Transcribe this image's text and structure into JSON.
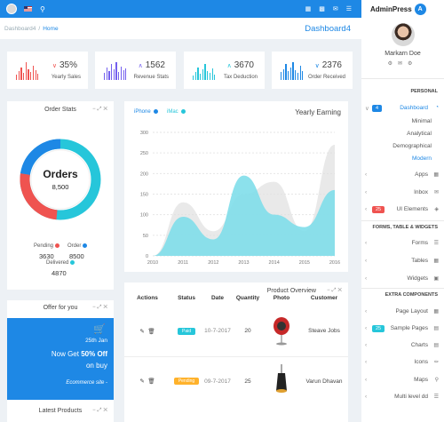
{
  "topbar": {
    "avatar": "avatar",
    "flag": "us-flag-icon",
    "icons": [
      "grid-icon",
      "bell-icon",
      "message-icon",
      "menu-icon"
    ],
    "color": "#1e88e5"
  },
  "breadcrumb": {
    "root": "Dashboard4",
    "current": "Home"
  },
  "page_title": "Dashboard4",
  "stats": [
    {
      "value": "35%",
      "label": "Yearly Sales",
      "color": "#ef5350",
      "arrow": "down"
    },
    {
      "value": "1562",
      "label": "Revenue Stats",
      "color": "#7460ee",
      "arrow": "up"
    },
    {
      "value": "3670",
      "label": "Tax Deduction",
      "color": "#26c6da",
      "arrow": "up"
    },
    {
      "value": "2376",
      "label": "Order Received",
      "color": "#1e88e5",
      "arrow": "down"
    }
  ],
  "order_stats": {
    "title": "Order Stats",
    "center_title": "Orders",
    "center_value": "8,500",
    "legend": [
      {
        "label": "Pending",
        "value": "3630",
        "color": "#ef5350"
      },
      {
        "label": "Order",
        "value": "8500",
        "color": "#1e88e5"
      },
      {
        "label": "Delivered",
        "value": "4870",
        "color": "#26c6da"
      }
    ]
  },
  "yearly_earning": {
    "title": "Yearly Earning",
    "legend": [
      {
        "label": "iPhone",
        "color": "#1e88e5"
      },
      {
        "label": "iMac",
        "color": "#26c6da"
      }
    ]
  },
  "chart_data": {
    "type": "area",
    "x": [
      "2010",
      "2011",
      "2012",
      "2013",
      "2014",
      "2015",
      "2016"
    ],
    "ylim": [
      0,
      300
    ],
    "yticks": [
      "0",
      "50",
      "100",
      "150",
      "200",
      "250",
      "300"
    ],
    "series": [
      {
        "name": "iPhone",
        "values": [
          0,
          130,
          60,
          150,
          180,
          60,
          270
        ],
        "color": "#e0e0e0"
      },
      {
        "name": "iMac",
        "values": [
          0,
          95,
          40,
          195,
          100,
          70,
          160
        ],
        "color": "#80deea"
      }
    ],
    "grid": true
  },
  "offer": {
    "title": "Offer for you",
    "icon": "cart-icon",
    "date": "25th Jan",
    "line1": "Now Get",
    "discount": "50% Off",
    "line2": "on buy",
    "footer": "Ecommerce site -"
  },
  "latest_products": {
    "title": "Latest Products"
  },
  "product_overview": {
    "title": "Product Overview",
    "columns": [
      "Actions",
      "Status",
      "Date",
      "Quantity",
      "Photo",
      "Customer"
    ],
    "rows": [
      {
        "status": "Paid",
        "status_color": "#26c6da",
        "date": "10-7-2017",
        "quantity": "20",
        "photo": "red-chair-photo",
        "customer": "Steave Jobs"
      },
      {
        "status": "Pending",
        "status_color": "#ffb22b",
        "date": "09-7-2017",
        "quantity": "25",
        "photo": "lamp-photo",
        "customer": "Varun Dhavan"
      }
    ]
  },
  "sidebar": {
    "logo_text": "AdminPress",
    "logo_badge": "A",
    "profile_name": "Markarn Doe",
    "personal_title": "PERSONAL",
    "forms_title": "FORMS, TABLE & WIDGETS",
    "extra_title": "EXTRA COMPONENTS",
    "dashboard": {
      "label": "Dashboard",
      "badge": "4"
    },
    "dashboard_sub": [
      "Minimal",
      "Analytical",
      "Demographical",
      "Modern"
    ],
    "apps": "Apps",
    "inbox": "Inbox",
    "ui": {
      "label": "UI Elements",
      "badge": "25"
    },
    "forms": "Forms",
    "tables": "Tables",
    "widgets": "Widgets",
    "page_layout": "Page Layout",
    "sample_pages": {
      "label": "Sample Pages",
      "badge": "25"
    },
    "charts": "Charts",
    "icons": "Icons",
    "maps": "Maps",
    "multi": "Multi level dd"
  }
}
